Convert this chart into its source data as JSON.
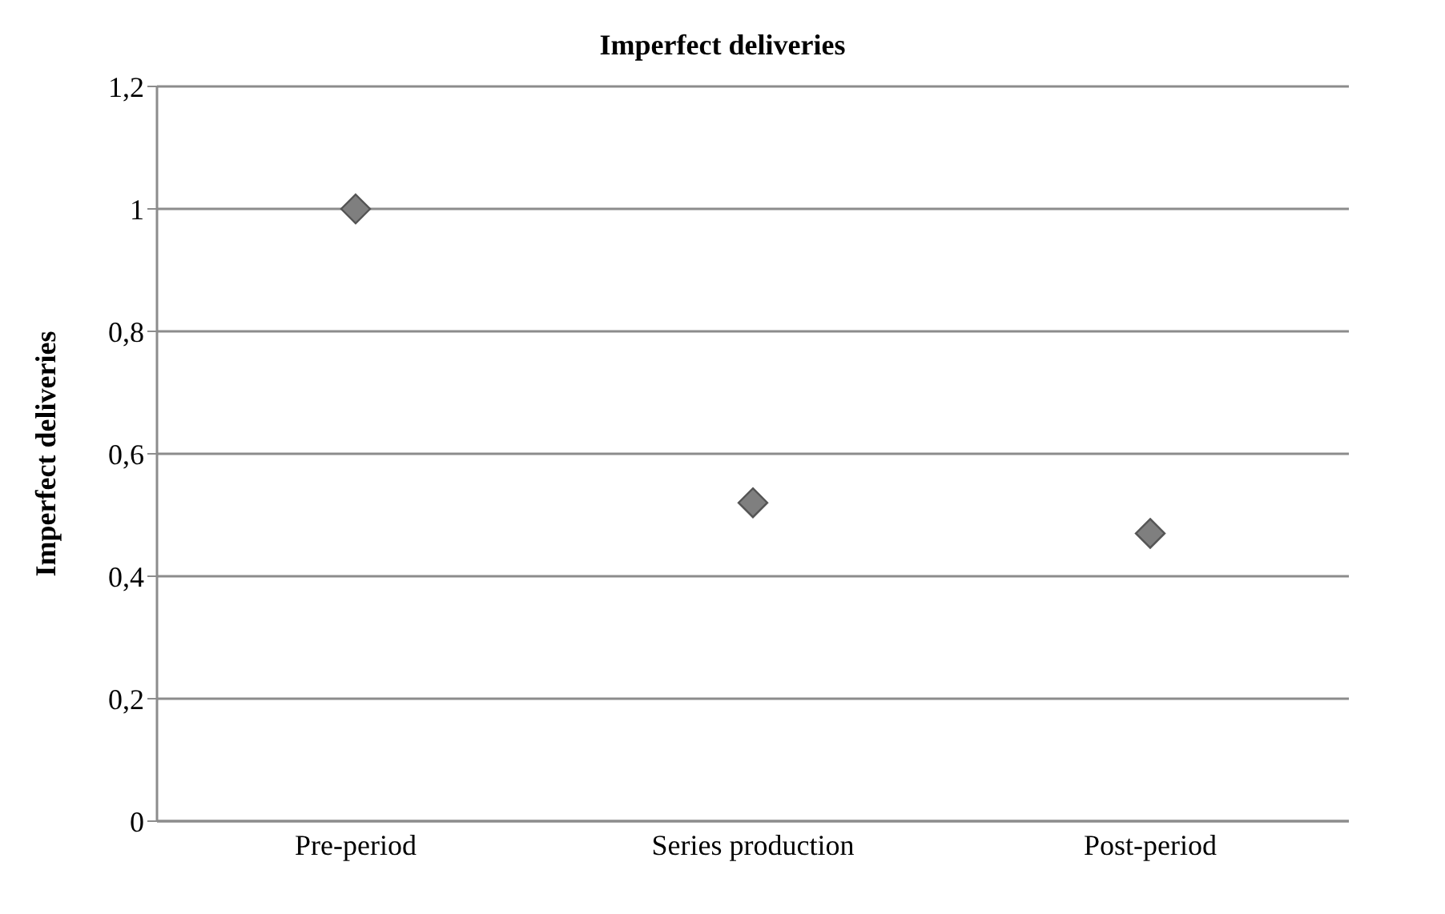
{
  "chart_data": {
    "type": "scatter",
    "title": "Imperfect deliveries",
    "ylabel": "Imperfect deliveries",
    "categories": [
      "Pre-period",
      "Series production",
      "Post-period"
    ],
    "series": [
      {
        "color": "#7f7f7f",
        "values": [
          1,
          0.52,
          0.47
        ]
      }
    ],
    "ylim": [
      0,
      1.2
    ],
    "yticks": [
      0,
      {
        "value": 0.2,
        "label": "0,2"
      },
      {
        "value": 0.4,
        "label": "0,4"
      },
      {
        "value": 0.6,
        "label": "0,6"
      },
      {
        "value": 0.8,
        "label": "0,8"
      },
      1,
      {
        "value": 1.2,
        "label": "1,2"
      }
    ],
    "grid": "y",
    "legend": false,
    "marker": "diamond"
  }
}
